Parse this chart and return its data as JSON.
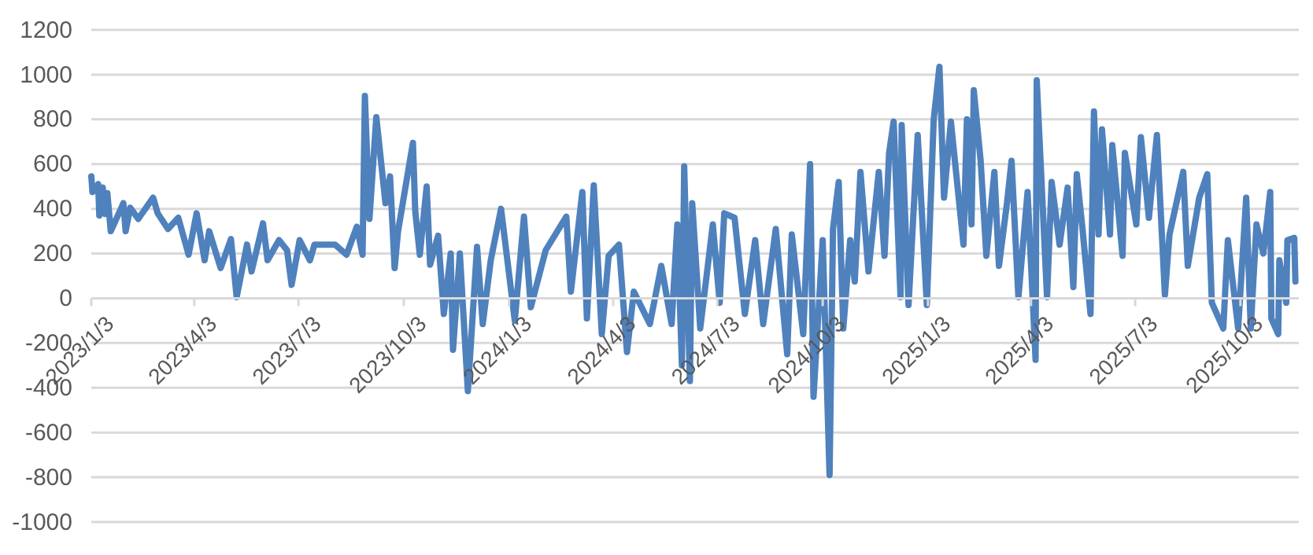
{
  "chart_data": {
    "type": "line",
    "grid": "y",
    "line_style": "solid",
    "marker": "none",
    "xlim": [
      "2023-01-03",
      "2025-11-23"
    ],
    "xticks": [
      {
        "value": "2023-01-03",
        "label": "2023/1/3"
      },
      {
        "value": "2023-04-03",
        "label": "2023/4/3"
      },
      {
        "value": "2023-07-03",
        "label": "2023/7/3"
      },
      {
        "value": "2023-10-03",
        "label": "2023/10/3"
      },
      {
        "value": "2024-01-03",
        "label": "2024/1/3"
      },
      {
        "value": "2024-04-03",
        "label": "2024/4/3"
      },
      {
        "value": "2024-07-03",
        "label": "2024/7/3"
      },
      {
        "value": "2024-10-03",
        "label": "2024/10/3"
      },
      {
        "value": "2025-01-03",
        "label": "2025/1/3"
      },
      {
        "value": "2025-04-03",
        "label": "2025/4/3"
      },
      {
        "value": "2025-07-03",
        "label": "2025/7/3"
      },
      {
        "value": "2025-10-03",
        "label": "2025/10/3"
      }
    ],
    "ylim": [
      -1000,
      1200
    ],
    "yticks": [
      -1000,
      -800,
      -600,
      -400,
      -200,
      0,
      200,
      400,
      600,
      800,
      1000,
      1200
    ],
    "x": [
      "2023-01-03",
      "2023-01-04",
      "2023-01-09",
      "2023-01-10",
      "2023-01-13",
      "2023-01-15",
      "2023-01-17",
      "2023-01-20",
      "2023-01-31",
      "2023-02-02",
      "2023-02-06",
      "2023-02-13",
      "2023-02-26",
      "2023-03-02",
      "2023-03-11",
      "2023-03-20",
      "2023-03-29",
      "2023-04-05",
      "2023-04-12",
      "2023-04-16",
      "2023-04-26",
      "2023-05-05",
      "2023-05-10",
      "2023-05-19",
      "2023-05-23",
      "2023-06-02",
      "2023-06-06",
      "2023-06-16",
      "2023-06-23",
      "2023-06-27",
      "2023-07-04",
      "2023-07-13",
      "2023-07-17",
      "2023-08-04",
      "2023-08-14",
      "2023-08-23",
      "2023-08-28",
      "2023-08-30",
      "2023-09-03",
      "2023-09-09",
      "2023-09-17",
      "2023-09-21",
      "2023-09-25",
      "2023-09-28",
      "2023-10-11",
      "2023-10-13",
      "2023-10-17",
      "2023-10-23",
      "2023-10-26",
      "2023-11-02",
      "2023-11-07",
      "2023-11-13",
      "2023-11-15",
      "2023-11-21",
      "2023-11-28",
      "2023-12-06",
      "2023-12-11",
      "2023-12-18",
      "2023-12-27",
      "2024-01-08",
      "2024-01-16",
      "2024-01-22",
      "2024-02-04",
      "2024-02-22",
      "2024-02-26",
      "2024-03-07",
      "2024-03-11",
      "2024-03-17",
      "2024-03-24",
      "2024-03-30",
      "2024-04-08",
      "2024-04-15",
      "2024-04-21",
      "2024-05-05",
      "2024-05-15",
      "2024-05-24",
      "2024-05-29",
      "2024-06-02",
      "2024-06-04",
      "2024-06-09",
      "2024-06-11",
      "2024-06-18",
      "2024-06-29",
      "2024-07-05",
      "2024-07-09",
      "2024-07-18",
      "2024-07-27",
      "2024-08-05",
      "2024-08-12",
      "2024-08-23",
      "2024-09-02",
      "2024-09-06",
      "2024-09-16",
      "2024-09-22",
      "2024-09-25",
      "2024-10-03",
      "2024-10-09",
      "2024-10-12",
      "2024-10-17",
      "2024-10-21",
      "2024-10-27",
      "2024-10-31",
      "2024-11-05",
      "2024-11-12",
      "2024-11-21",
      "2024-11-26",
      "2024-11-30",
      "2024-12-04",
      "2024-12-10",
      "2024-12-11",
      "2024-12-17",
      "2024-12-25",
      "2025-01-02",
      "2025-01-08",
      "2025-01-13",
      "2025-01-17",
      "2025-01-23",
      "2025-02-03",
      "2025-02-06",
      "2025-02-10",
      "2025-02-12",
      "2025-02-18",
      "2025-02-23",
      "2025-03-02",
      "2025-03-06",
      "2025-03-13",
      "2025-03-17",
      "2025-03-23",
      "2025-03-31",
      "2025-04-07",
      "2025-04-08",
      "2025-04-17",
      "2025-04-21",
      "2025-04-28",
      "2025-05-05",
      "2025-05-10",
      "2025-05-13",
      "2025-05-18",
      "2025-05-25",
      "2025-05-28",
      "2025-06-01",
      "2025-06-04",
      "2025-06-11",
      "2025-06-13",
      "2025-06-22",
      "2025-06-24",
      "2025-07-04",
      "2025-07-08",
      "2025-07-15",
      "2025-07-22",
      "2025-07-29",
      "2025-08-02",
      "2025-08-14",
      "2025-08-18",
      "2025-08-28",
      "2025-09-04",
      "2025-09-08",
      "2025-09-18",
      "2025-09-22",
      "2025-10-01",
      "2025-10-08",
      "2025-10-12",
      "2025-10-17",
      "2025-10-23",
      "2025-10-29",
      "2025-10-30",
      "2025-11-05",
      "2025-11-06",
      "2025-11-12",
      "2025-11-13",
      "2025-11-19",
      "2025-11-20"
    ],
    "series": [
      {
        "color": "#4f81bd",
        "values": [
          545,
          475,
          510,
          370,
          495,
          377,
          470,
          300,
          425,
          300,
          405,
          355,
          450,
          380,
          310,
          360,
          195,
          380,
          170,
          300,
          135,
          265,
          5,
          240,
          120,
          335,
          170,
          260,
          215,
          60,
          260,
          170,
          240,
          240,
          195,
          320,
          195,
          905,
          355,
          810,
          425,
          545,
          135,
          300,
          695,
          390,
          195,
          500,
          150,
          280,
          -70,
          200,
          -230,
          200,
          -415,
          230,
          -115,
          170,
          400,
          -100,
          365,
          -40,
          215,
          365,
          30,
          475,
          -90,
          505,
          -160,
          190,
          240,
          -240,
          30,
          -115,
          145,
          -115,
          330,
          -300,
          590,
          -370,
          425,
          -135,
          330,
          -20,
          380,
          360,
          -70,
          260,
          -115,
          310,
          -250,
          285,
          -160,
          600,
          -440,
          260,
          -790,
          310,
          520,
          -135,
          260,
          75,
          565,
          120,
          565,
          190,
          650,
          790,
          5,
          775,
          -30,
          730,
          -30,
          800,
          1035,
          450,
          790,
          240,
          800,
          330,
          930,
          615,
          190,
          565,
          145,
          425,
          615,
          5,
          475,
          -275,
          975,
          5,
          520,
          240,
          495,
          50,
          555,
          310,
          -70,
          835,
          285,
          755,
          285,
          685,
          190,
          650,
          330,
          720,
          360,
          730,
          15,
          285,
          565,
          145,
          450,
          555,
          -20,
          -135,
          260,
          -135,
          450,
          -135,
          330,
          200,
          475,
          -90,
          -160,
          170,
          -20,
          260,
          270,
          75
        ]
      }
    ]
  }
}
